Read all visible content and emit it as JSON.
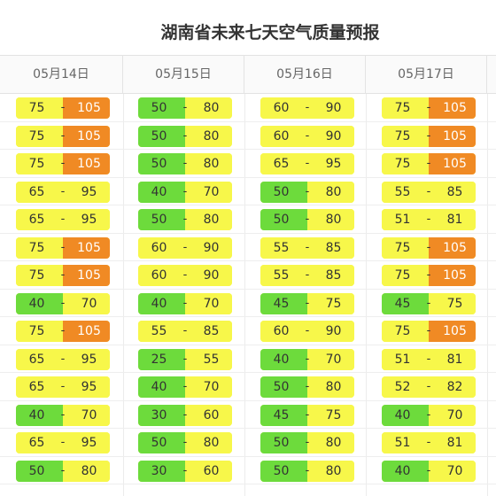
{
  "title": "湖南省未来七天空气质量预报",
  "colors": {
    "good": "#6ddb3c",
    "moderate": "#f7f74a",
    "light_pollution": "#f08a24"
  },
  "columns": [
    {
      "date": "05月14日",
      "rows": [
        {
          "lo": "75",
          "hi": "105",
          "lc": "y",
          "hc": "o"
        },
        {
          "lo": "75",
          "hi": "105",
          "lc": "y",
          "hc": "o"
        },
        {
          "lo": "75",
          "hi": "105",
          "lc": "y",
          "hc": "o"
        },
        {
          "lo": "65",
          "hi": "95",
          "lc": "y",
          "hc": "y"
        },
        {
          "lo": "65",
          "hi": "95",
          "lc": "y",
          "hc": "y"
        },
        {
          "lo": "75",
          "hi": "105",
          "lc": "y",
          "hc": "o"
        },
        {
          "lo": "75",
          "hi": "105",
          "lc": "y",
          "hc": "o"
        },
        {
          "lo": "40",
          "hi": "70",
          "lc": "g",
          "hc": "y"
        },
        {
          "lo": "75",
          "hi": "105",
          "lc": "y",
          "hc": "o"
        },
        {
          "lo": "65",
          "hi": "95",
          "lc": "y",
          "hc": "y"
        },
        {
          "lo": "65",
          "hi": "95",
          "lc": "y",
          "hc": "y"
        },
        {
          "lo": "40",
          "hi": "70",
          "lc": "g",
          "hc": "y"
        },
        {
          "lo": "65",
          "hi": "95",
          "lc": "y",
          "hc": "y"
        },
        {
          "lo": "50",
          "hi": "80",
          "lc": "g",
          "hc": "y"
        }
      ]
    },
    {
      "date": "05月15日",
      "rows": [
        {
          "lo": "50",
          "hi": "80",
          "lc": "g",
          "hc": "y"
        },
        {
          "lo": "50",
          "hi": "80",
          "lc": "g",
          "hc": "y"
        },
        {
          "lo": "50",
          "hi": "80",
          "lc": "g",
          "hc": "y"
        },
        {
          "lo": "40",
          "hi": "70",
          "lc": "g",
          "hc": "y"
        },
        {
          "lo": "50",
          "hi": "80",
          "lc": "g",
          "hc": "y"
        },
        {
          "lo": "60",
          "hi": "90",
          "lc": "y",
          "hc": "y"
        },
        {
          "lo": "60",
          "hi": "90",
          "lc": "y",
          "hc": "y"
        },
        {
          "lo": "40",
          "hi": "70",
          "lc": "g",
          "hc": "y"
        },
        {
          "lo": "55",
          "hi": "85",
          "lc": "y",
          "hc": "y"
        },
        {
          "lo": "25",
          "hi": "55",
          "lc": "g",
          "hc": "y"
        },
        {
          "lo": "40",
          "hi": "70",
          "lc": "g",
          "hc": "y"
        },
        {
          "lo": "30",
          "hi": "60",
          "lc": "g",
          "hc": "y"
        },
        {
          "lo": "50",
          "hi": "80",
          "lc": "g",
          "hc": "y"
        },
        {
          "lo": "30",
          "hi": "60",
          "lc": "g",
          "hc": "y"
        }
      ]
    },
    {
      "date": "05月16日",
      "rows": [
        {
          "lo": "60",
          "hi": "90",
          "lc": "y",
          "hc": "y"
        },
        {
          "lo": "60",
          "hi": "90",
          "lc": "y",
          "hc": "y"
        },
        {
          "lo": "65",
          "hi": "95",
          "lc": "y",
          "hc": "y"
        },
        {
          "lo": "50",
          "hi": "80",
          "lc": "g",
          "hc": "y"
        },
        {
          "lo": "50",
          "hi": "80",
          "lc": "g",
          "hc": "y"
        },
        {
          "lo": "55",
          "hi": "85",
          "lc": "y",
          "hc": "y"
        },
        {
          "lo": "55",
          "hi": "85",
          "lc": "y",
          "hc": "y"
        },
        {
          "lo": "45",
          "hi": "75",
          "lc": "g",
          "hc": "y"
        },
        {
          "lo": "60",
          "hi": "90",
          "lc": "y",
          "hc": "y"
        },
        {
          "lo": "40",
          "hi": "70",
          "lc": "g",
          "hc": "y"
        },
        {
          "lo": "50",
          "hi": "80",
          "lc": "g",
          "hc": "y"
        },
        {
          "lo": "45",
          "hi": "75",
          "lc": "g",
          "hc": "y"
        },
        {
          "lo": "50",
          "hi": "80",
          "lc": "g",
          "hc": "y"
        },
        {
          "lo": "50",
          "hi": "80",
          "lc": "g",
          "hc": "y"
        }
      ]
    },
    {
      "date": "05月17日",
      "rows": [
        {
          "lo": "75",
          "hi": "105",
          "lc": "y",
          "hc": "o"
        },
        {
          "lo": "75",
          "hi": "105",
          "lc": "y",
          "hc": "o"
        },
        {
          "lo": "75",
          "hi": "105",
          "lc": "y",
          "hc": "o"
        },
        {
          "lo": "55",
          "hi": "85",
          "lc": "y",
          "hc": "y"
        },
        {
          "lo": "51",
          "hi": "81",
          "lc": "y",
          "hc": "y"
        },
        {
          "lo": "75",
          "hi": "105",
          "lc": "y",
          "hc": "o"
        },
        {
          "lo": "75",
          "hi": "105",
          "lc": "y",
          "hc": "o"
        },
        {
          "lo": "45",
          "hi": "75",
          "lc": "g",
          "hc": "y"
        },
        {
          "lo": "75",
          "hi": "105",
          "lc": "y",
          "hc": "o"
        },
        {
          "lo": "51",
          "hi": "81",
          "lc": "y",
          "hc": "y"
        },
        {
          "lo": "52",
          "hi": "82",
          "lc": "y",
          "hc": "y"
        },
        {
          "lo": "40",
          "hi": "70",
          "lc": "g",
          "hc": "y"
        },
        {
          "lo": "51",
          "hi": "81",
          "lc": "y",
          "hc": "y"
        },
        {
          "lo": "40",
          "hi": "70",
          "lc": "g",
          "hc": "y"
        }
      ]
    }
  ]
}
